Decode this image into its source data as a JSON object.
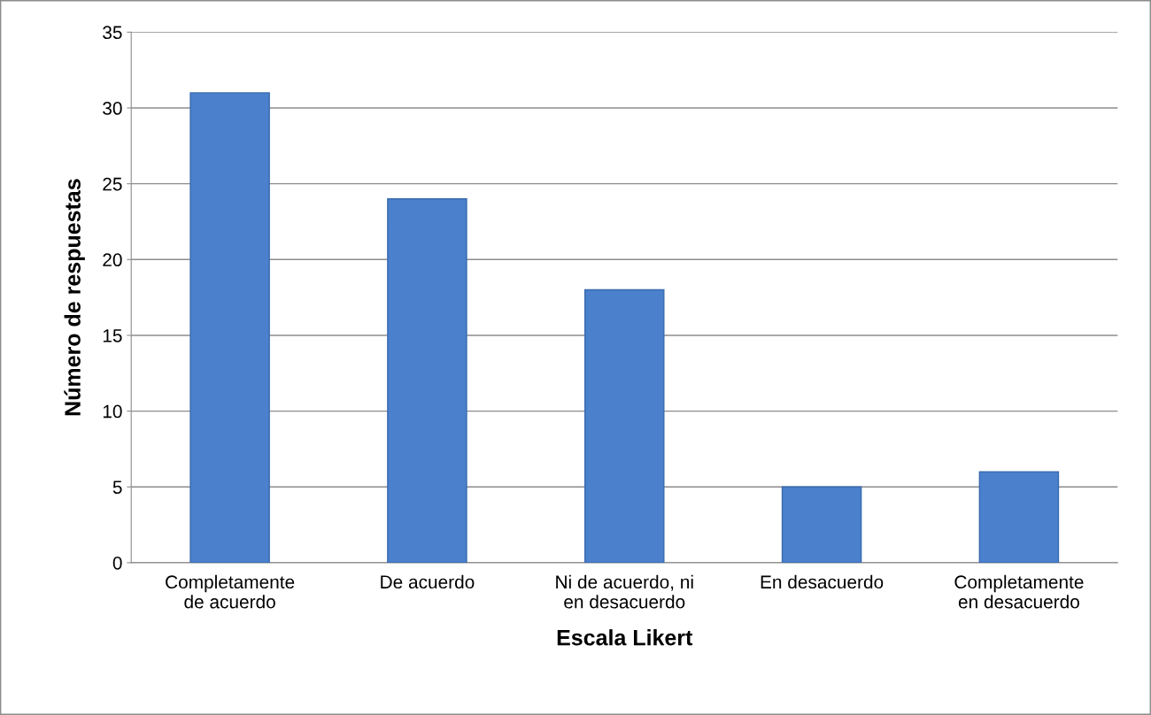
{
  "chart_data": {
    "type": "bar",
    "xlabel": "Escala Likert",
    "ylabel": "Número de respuestas",
    "categories": [
      "Completamente\nde acuerdo",
      "De acuerdo",
      "Ni de acuerdo, ni\nen desacuerdo",
      "En desacuerdo",
      "Completamente\nen desacuerdo"
    ],
    "values": [
      31,
      24,
      18,
      5,
      6
    ],
    "color": "#4a80cc",
    "ylim": [
      0,
      35
    ],
    "yticks": [
      0,
      5,
      10,
      15,
      20,
      25,
      30,
      35
    ],
    "grid": "y",
    "legend": false
  }
}
